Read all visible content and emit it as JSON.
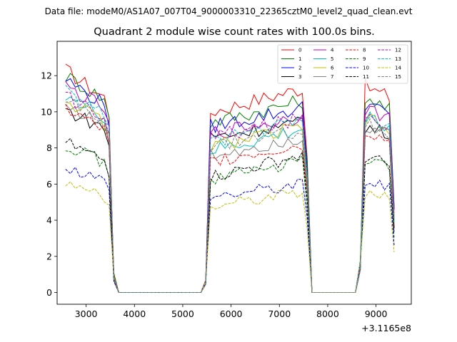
{
  "suptitle": "Data file: modeM0/AS1A07_007T04_9000003310_22365cztM0_level2_quad_clean.evt",
  "chart_data": {
    "type": "line",
    "title": "Quadrant 2 module wise count rates with 100.0s bins.",
    "xlabel": "",
    "ylabel": "",
    "x_offset_label": "+3.1165e8",
    "xlim": [
      2400,
      9730
    ],
    "ylim": [
      -0.65,
      13.9
    ],
    "xticks": [
      3000,
      4000,
      5000,
      6000,
      7000,
      8000,
      9000
    ],
    "yticks": [
      0,
      2,
      4,
      6,
      8,
      10,
      12
    ],
    "grid": false,
    "legend_position": "top-right",
    "legend_columns": 4,
    "segments": [
      {
        "start": 2575,
        "end": 3575
      },
      {
        "start": 5475,
        "end": 7575
      },
      {
        "start": 8675,
        "end": 9375
      }
    ],
    "gaps": [
      {
        "start": 3675,
        "end": 5375
      },
      {
        "start": 7675,
        "end": 8575
      }
    ],
    "series": [
      {
        "name": "0",
        "color": "#ff0000",
        "dash": "solid",
        "high": 12.3,
        "mid": 10.4,
        "end": 11.4,
        "hslope": -1.5,
        "mslope": 1.3,
        "eslope": -0.6
      },
      {
        "name": "1",
        "color": "#008000",
        "dash": "solid",
        "high": 12.0,
        "mid": 9.8,
        "end": 10.9,
        "hslope": -1.3,
        "mslope": 1.2,
        "eslope": -0.8
      },
      {
        "name": "2",
        "color": "#0000ff",
        "dash": "solid",
        "high": 11.8,
        "mid": 9.6,
        "end": 10.5,
        "hslope": -1.4,
        "mslope": 1.0,
        "eslope": -0.7
      },
      {
        "name": "3",
        "color": "#000000",
        "dash": "solid",
        "high": 10.1,
        "mid": 9.0,
        "end": 9.2,
        "hslope": -1.0,
        "mslope": 0.8,
        "eslope": -0.5
      },
      {
        "name": "4",
        "color": "#bf00bf",
        "dash": "solid",
        "high": 11.4,
        "mid": 9.2,
        "end": 10.2,
        "hslope": -1.2,
        "mslope": 0.9,
        "eslope": -0.6
      },
      {
        "name": "5",
        "color": "#00bfbf",
        "dash": "solid",
        "high": 11.0,
        "mid": 8.2,
        "end": 9.8,
        "hslope": -1.3,
        "mslope": 1.2,
        "eslope": -0.6
      },
      {
        "name": "6",
        "color": "#bfbf00",
        "dash": "solid",
        "high": 10.7,
        "mid": 8.5,
        "end": 9.6,
        "hslope": -1.3,
        "mslope": 1.0,
        "eslope": -0.6
      },
      {
        "name": "7",
        "color": "#808080",
        "dash": "solid",
        "high": 10.4,
        "mid": 8.0,
        "end": 9.3,
        "hslope": -1.1,
        "mslope": 1.0,
        "eslope": -0.6
      },
      {
        "name": "8",
        "color": "#ff0000",
        "dash": "dashed",
        "high": 10.2,
        "mid": 7.7,
        "end": 9.0,
        "hslope": -1.2,
        "mslope": 0.9,
        "eslope": -0.6
      },
      {
        "name": "9",
        "color": "#008000",
        "dash": "dashed",
        "high": 8.2,
        "mid": 6.7,
        "end": 7.4,
        "hslope": -1.0,
        "mslope": 0.9,
        "eslope": -0.4
      },
      {
        "name": "10",
        "color": "#0000ff",
        "dash": "dashed",
        "high": 7.0,
        "mid": 5.7,
        "end": 6.2,
        "hslope": -0.8,
        "mslope": 0.7,
        "eslope": -0.4
      },
      {
        "name": "11",
        "color": "#000000",
        "dash": "dashed",
        "high": 8.3,
        "mid": 6.8,
        "end": 7.5,
        "hslope": -1.0,
        "mslope": 1.2,
        "eslope": -0.5
      },
      {
        "name": "12",
        "color": "#bf00bf",
        "dash": "dashed",
        "high": 10.9,
        "mid": 9.0,
        "end": 9.9,
        "hslope": -1.2,
        "mslope": 1.0,
        "eslope": -0.6
      },
      {
        "name": "13",
        "color": "#00bfbf",
        "dash": "dashed",
        "high": 11.1,
        "mid": 8.8,
        "end": 9.7,
        "hslope": -1.3,
        "mslope": 1.1,
        "eslope": -0.6
      },
      {
        "name": "14",
        "color": "#bfbf00",
        "dash": "dashed",
        "high": 6.1,
        "mid": 5.2,
        "end": 5.5,
        "hslope": -0.9,
        "mslope": 0.8,
        "eslope": -0.3
      },
      {
        "name": "15",
        "color": "#808080",
        "dash": "dashed",
        "high": 10.6,
        "mid": 8.4,
        "end": 9.4,
        "hslope": -1.2,
        "mslope": 1.0,
        "eslope": -0.6
      }
    ]
  }
}
